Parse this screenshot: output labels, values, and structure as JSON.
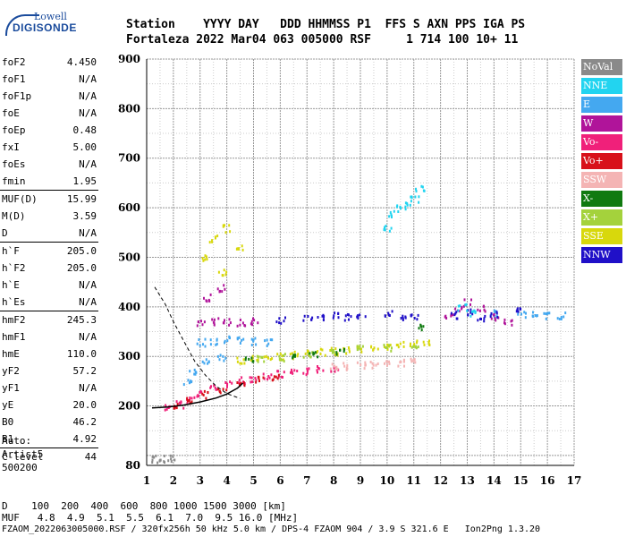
{
  "logo": {
    "line1": "Lowell",
    "line2": "DIGISONDE"
  },
  "header": {
    "row1": "Station    YYYY DAY   DDD HHMMSS P1  FFS S AXN PPS IGA PS",
    "row2": "Fortaleza 2022 Mar04 063 005000 RSF     1 714 100 10+ 11"
  },
  "params": [
    {
      "key": "foF2",
      "value": "4.450"
    },
    {
      "key": "foF1",
      "value": "N/A"
    },
    {
      "key": "foF1p",
      "value": "N/A"
    },
    {
      "key": "foE",
      "value": "N/A"
    },
    {
      "key": "foEp",
      "value": "0.48"
    },
    {
      "key": "fxI",
      "value": "5.00"
    },
    {
      "key": "foEs",
      "value": "N/A"
    },
    {
      "key": "fmin",
      "value": "1.95"
    },
    {
      "key": "MUF(D)",
      "value": "15.99"
    },
    {
      "key": "M(D)",
      "value": "3.59"
    },
    {
      "key": "D",
      "value": "N/A"
    },
    {
      "key": "h`F",
      "value": "205.0"
    },
    {
      "key": "h`F2",
      "value": "205.0"
    },
    {
      "key": "h`E",
      "value": "N/A"
    },
    {
      "key": "h`Es",
      "value": "N/A"
    },
    {
      "key": "hmF2",
      "value": "245.3"
    },
    {
      "key": "hmF1",
      "value": "N/A"
    },
    {
      "key": "hmE",
      "value": "110.0"
    },
    {
      "key": "yF2",
      "value": "57.2"
    },
    {
      "key": "yF1",
      "value": "N/A"
    },
    {
      "key": "yE",
      "value": "20.0"
    },
    {
      "key": "B0",
      "value": "46.2"
    },
    {
      "key": "B1",
      "value": "4.92"
    },
    {
      "key": "C-level",
      "value": "44"
    }
  ],
  "auto": {
    "line1": "Auto:",
    "line2": "Artist5",
    "line3": "500200"
  },
  "legend": [
    {
      "label": "NoVal",
      "color": "#8a8a8a"
    },
    {
      "label": "NNE",
      "color": "#22d4f0"
    },
    {
      "label": "E",
      "color": "#44a8f0"
    },
    {
      "label": "W",
      "color": "#b0149a"
    },
    {
      "label": "Vo-",
      "color": "#f0207a"
    },
    {
      "label": "Vo+",
      "color": "#d8101a"
    },
    {
      "label": "SSW",
      "color": "#f4b4b4"
    },
    {
      "label": "X-",
      "color": "#107a10"
    },
    {
      "label": "X+",
      "color": "#a4d23c"
    },
    {
      "label": "SSE",
      "color": "#d8d80c"
    },
    {
      "label": "NNW",
      "color": "#2010c8"
    }
  ],
  "bottom": {
    "row1": "D    100  200  400  600  800 1000 1500 3000 [km]",
    "row2": "MUF   4.8  4.9  5.1  5.5  6.1  7.0  9.5 16.0 [MHz]",
    "row3": "FZAOM_2022063005000.RSF / 320fx256h 50 kHz 5.0 km / DPS-4 FZAOM 904 / 3.9 S 321.6 E   Ion2Png 1.3.20"
  },
  "chart_data": {
    "type": "scatter",
    "xlim": [
      1,
      17
    ],
    "ylim": [
      80,
      900
    ],
    "x_ticks": [
      1,
      2,
      3,
      4,
      5,
      6,
      7,
      8,
      9,
      10,
      11,
      12,
      13,
      14,
      15,
      16,
      17
    ],
    "y_ticks": [
      80,
      200,
      300,
      400,
      500,
      600,
      700,
      800,
      900
    ],
    "grid": true,
    "series": [
      {
        "name": "Vo-",
        "points": [
          [
            1.8,
            200
          ],
          [
            2.2,
            205
          ],
          [
            2.6,
            215
          ],
          [
            3.0,
            228
          ],
          [
            3.5,
            238
          ],
          [
            4.0,
            246
          ],
          [
            4.5,
            253
          ],
          [
            5.0,
            258
          ],
          [
            5.5,
            262
          ],
          [
            6.0,
            266
          ],
          [
            6.5,
            268
          ],
          [
            7.0,
            272
          ],
          [
            7.5,
            276
          ],
          [
            8.0,
            278
          ]
        ]
      },
      {
        "name": "Vo+",
        "points": [
          [
            2.0,
            205
          ],
          [
            2.5,
            212
          ],
          [
            3.2,
            225
          ],
          [
            3.8,
            235
          ],
          [
            4.5,
            245
          ],
          [
            5.2,
            254
          ],
          [
            5.8,
            258
          ]
        ]
      },
      {
        "name": "SSE",
        "points": [
          [
            4.5,
            295
          ],
          [
            5.0,
            298
          ],
          [
            5.5,
            300
          ],
          [
            6.0,
            302
          ],
          [
            6.5,
            305
          ],
          [
            7.0,
            308
          ],
          [
            7.5,
            310
          ],
          [
            8.0,
            312
          ],
          [
            8.5,
            315
          ],
          [
            9.0,
            318
          ],
          [
            9.5,
            320
          ],
          [
            10.0,
            322
          ],
          [
            10.5,
            325
          ],
          [
            11.0,
            328
          ],
          [
            11.4,
            330
          ],
          [
            3.2,
            500
          ],
          [
            3.5,
            540
          ],
          [
            4.0,
            560
          ],
          [
            4.5,
            520
          ],
          [
            3.8,
            470
          ]
        ]
      },
      {
        "name": "X+",
        "points": [
          [
            5.2,
            298
          ],
          [
            6.0,
            300
          ],
          [
            7.0,
            305
          ],
          [
            8.0,
            310
          ],
          [
            9.0,
            318
          ],
          [
            10.0,
            320
          ],
          [
            11.0,
            325
          ]
        ]
      },
      {
        "name": "E",
        "points": [
          [
            3.0,
            330
          ],
          [
            3.5,
            332
          ],
          [
            4.0,
            335
          ],
          [
            4.5,
            335
          ],
          [
            5.0,
            332
          ],
          [
            5.5,
            330
          ],
          [
            3.2,
            295
          ],
          [
            3.8,
            300
          ],
          [
            2.7,
            270
          ],
          [
            2.5,
            250
          ],
          [
            14.0,
            390
          ],
          [
            15.0,
            385
          ],
          [
            15.5,
            385
          ],
          [
            16.0,
            385
          ],
          [
            16.5,
            385
          ]
        ]
      },
      {
        "name": "W",
        "points": [
          [
            3.0,
            370
          ],
          [
            3.5,
            372
          ],
          [
            4.0,
            372
          ],
          [
            4.5,
            370
          ],
          [
            5.0,
            372
          ],
          [
            3.2,
            420
          ],
          [
            3.8,
            440
          ],
          [
            12.3,
            380
          ],
          [
            12.6,
            400
          ],
          [
            13.0,
            410
          ],
          [
            13.5,
            400
          ],
          [
            14.0,
            380
          ],
          [
            14.5,
            370
          ]
        ]
      },
      {
        "name": "NNW",
        "points": [
          [
            6.0,
            375
          ],
          [
            7.0,
            380
          ],
          [
            7.5,
            380
          ],
          [
            8.0,
            385
          ],
          [
            8.5,
            380
          ],
          [
            9.0,
            380
          ],
          [
            10.0,
            390
          ],
          [
            10.5,
            380
          ],
          [
            11.0,
            380
          ],
          [
            12.5,
            385
          ],
          [
            13.0,
            390
          ],
          [
            13.5,
            380
          ],
          [
            14.0,
            385
          ],
          [
            14.8,
            400
          ]
        ]
      },
      {
        "name": "NNE",
        "points": [
          [
            10.0,
            560
          ],
          [
            10.2,
            590
          ],
          [
            10.5,
            600
          ],
          [
            10.8,
            610
          ],
          [
            11.0,
            620
          ],
          [
            11.2,
            640
          ],
          [
            12.8,
            400
          ],
          [
            13.2,
            390
          ]
        ]
      },
      {
        "name": "SSW",
        "points": [
          [
            8.0,
            280
          ],
          [
            8.5,
            282
          ],
          [
            9.0,
            283
          ],
          [
            9.5,
            285
          ],
          [
            10.0,
            288
          ],
          [
            10.5,
            290
          ],
          [
            11.0,
            295
          ]
        ]
      },
      {
        "name": "X-",
        "points": [
          [
            4.8,
            295
          ],
          [
            6.5,
            300
          ],
          [
            7.2,
            308
          ],
          [
            8.2,
            312
          ],
          [
            11.2,
            360
          ]
        ]
      },
      {
        "name": "NoVal",
        "points": [
          [
            1.3,
            95
          ],
          [
            1.6,
            95
          ],
          [
            1.9,
            95
          ]
        ]
      }
    ],
    "curves": [
      {
        "name": "dashed",
        "style": "dashed",
        "points": [
          [
            1.3,
            440
          ],
          [
            1.7,
            405
          ],
          [
            2.0,
            370
          ],
          [
            2.4,
            330
          ],
          [
            2.8,
            290
          ],
          [
            3.2,
            262
          ],
          [
            3.6,
            240
          ],
          [
            4.0,
            225
          ],
          [
            4.5,
            215
          ]
        ]
      },
      {
        "name": "solid",
        "style": "solid",
        "points": [
          [
            1.2,
            196
          ],
          [
            1.8,
            198
          ],
          [
            2.4,
            202
          ],
          [
            3.0,
            208
          ],
          [
            3.6,
            216
          ],
          [
            4.0,
            224
          ],
          [
            4.4,
            236
          ],
          [
            4.6,
            246
          ]
        ]
      }
    ]
  }
}
